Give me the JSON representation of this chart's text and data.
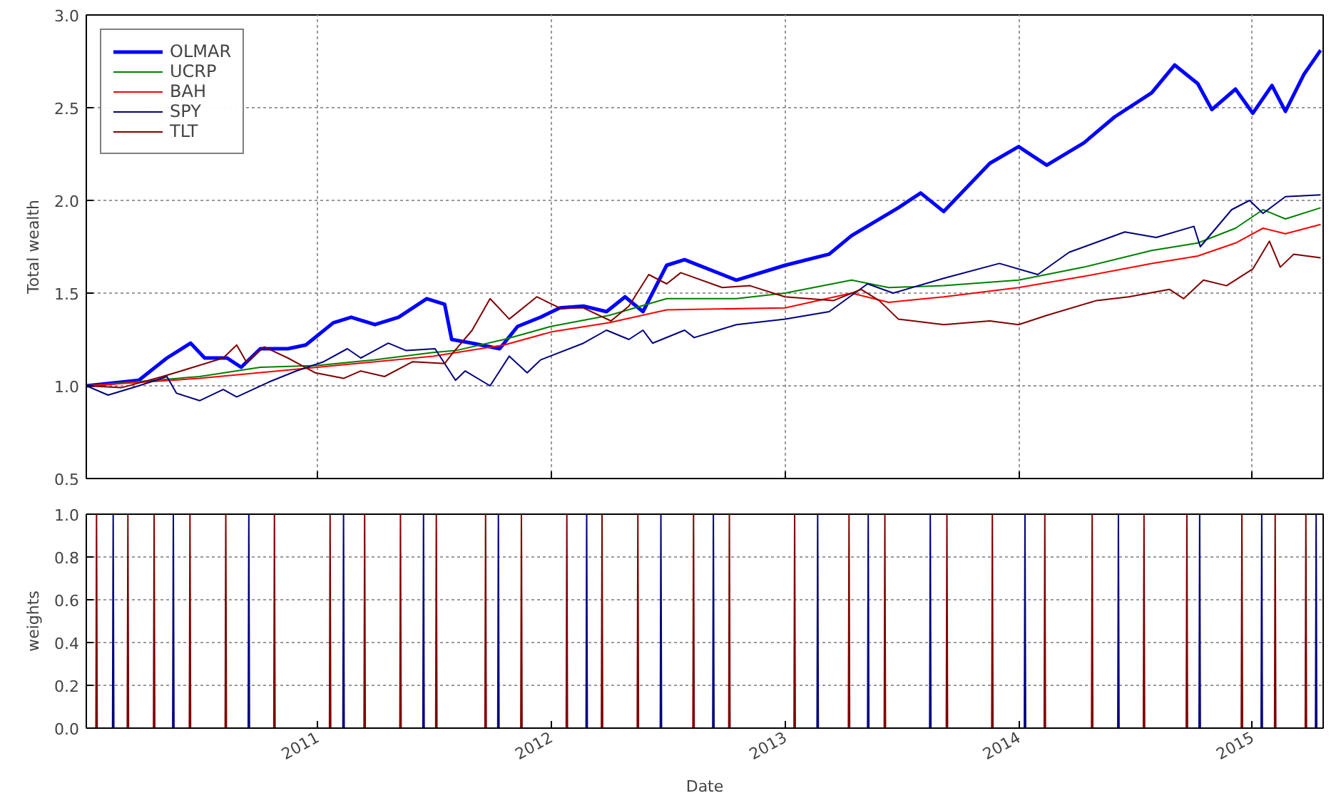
{
  "chart_data": [
    {
      "type": "line",
      "ylabel": "Total wealth",
      "xlim": [
        "2010-01-05",
        "2015-04-22"
      ],
      "ylim": [
        0.5,
        3.0
      ],
      "yticks": [
        0.5,
        {
          "value": 1,
          "label": "1.0"
        },
        1.5,
        {
          "value": 2,
          "label": "2.0"
        },
        2.5,
        {
          "value": 3,
          "label": "3.0"
        }
      ],
      "xticks": [
        {
          "value": "2011-01-01",
          "label": null
        },
        {
          "value": "2012-01-01",
          "label": null
        },
        {
          "value": "2013-01-01",
          "label": null
        },
        {
          "value": "2014-01-01",
          "label": null
        },
        {
          "value": "2015-01-01",
          "label": null
        }
      ],
      "tick_labels": "y",
      "grid": true,
      "legend": "top left",
      "line_style": "solid",
      "marker": "none",
      "series": [
        {
          "name": "OLMAR",
          "color": "#0000ff",
          "x": [
            "2010-01-05",
            "2010-03-28",
            "2010-05-11",
            "2010-06-17",
            "2010-07-09",
            "2010-08-13",
            "2010-09-04",
            "2010-10-04",
            "2010-11-16",
            "2010-12-14",
            "2011-01-26",
            "2011-02-23",
            "2011-04-01",
            "2011-05-08",
            "2011-06-21",
            "2011-07-19",
            "2011-07-30",
            "2011-08-31",
            "2011-10-13",
            "2011-11-10",
            "2011-12-16",
            "2012-01-15",
            "2012-02-21",
            "2012-03-28",
            "2012-04-26",
            "2012-05-24",
            "2012-06-30",
            "2012-07-28",
            "2012-10-17",
            "2013-01-01",
            "2013-03-11",
            "2013-04-15",
            "2013-06-27",
            "2013-08-01",
            "2013-09-06",
            "2013-11-17",
            "2014-01-01",
            "2014-02-14",
            "2014-04-13",
            "2014-05-31",
            "2014-07-28",
            "2014-09-02",
            "2014-10-08",
            "2014-10-30",
            "2014-12-06",
            "2015-01-02",
            "2015-02-01",
            "2015-02-22",
            "2015-03-23",
            "2015-04-18"
          ],
          "values": [
            1.0,
            1.03,
            1.15,
            1.23,
            1.15,
            1.15,
            1.1,
            1.2,
            1.2,
            1.22,
            1.34,
            1.37,
            1.33,
            1.37,
            1.47,
            1.44,
            1.25,
            1.23,
            1.2,
            1.32,
            1.37,
            1.42,
            1.43,
            1.4,
            1.48,
            1.4,
            1.65,
            1.68,
            1.57,
            1.65,
            1.71,
            1.81,
            1.96,
            2.04,
            1.94,
            2.2,
            2.29,
            2.19,
            2.31,
            2.45,
            2.58,
            2.73,
            2.63,
            2.49,
            2.6,
            2.47,
            2.62,
            2.48,
            2.68,
            2.81
          ]
        },
        {
          "name": "UCRP",
          "color": "#008000",
          "x": [
            "2010-01-05",
            "2010-07-01",
            "2010-10-04",
            "2011-01-01",
            "2011-04-01",
            "2011-07-01",
            "2011-08-05",
            "2011-10-20",
            "2012-01-01",
            "2012-04-01",
            "2012-06-30",
            "2012-10-17",
            "2013-01-01",
            "2013-04-15",
            "2013-06-12",
            "2013-09-06",
            "2014-01-01",
            "2014-04-13",
            "2014-07-28",
            "2014-10-08",
            "2014-12-06",
            "2015-01-18",
            "2015-02-22",
            "2015-04-18"
          ],
          "values": [
            1.0,
            1.05,
            1.1,
            1.11,
            1.14,
            1.18,
            1.19,
            1.25,
            1.32,
            1.38,
            1.47,
            1.47,
            1.5,
            1.57,
            1.53,
            1.54,
            1.57,
            1.64,
            1.73,
            1.77,
            1.85,
            1.95,
            1.9,
            1.96
          ]
        },
        {
          "name": "BAH",
          "color": "#ff0000",
          "x": [
            "2010-01-05",
            "2010-07-01",
            "2011-01-01",
            "2011-07-01",
            "2011-10-20",
            "2012-01-01",
            "2012-04-01",
            "2012-06-30",
            "2013-01-01",
            "2013-04-15",
            "2013-06-12",
            "2013-09-06",
            "2014-01-01",
            "2014-04-13",
            "2014-07-28",
            "2014-10-08",
            "2014-12-06",
            "2015-01-18",
            "2015-02-22",
            "2015-04-18"
          ],
          "values": [
            1.0,
            1.04,
            1.1,
            1.16,
            1.22,
            1.29,
            1.34,
            1.41,
            1.42,
            1.5,
            1.45,
            1.48,
            1.53,
            1.59,
            1.66,
            1.7,
            1.77,
            1.85,
            1.82,
            1.87
          ]
        },
        {
          "name": "SPY",
          "color": "#000080",
          "x": [
            "2010-01-05",
            "2010-02-08",
            "2010-03-28",
            "2010-05-11",
            "2010-05-26",
            "2010-07-01",
            "2010-08-07",
            "2010-08-28",
            "2010-10-17",
            "2010-11-29",
            "2011-01-11",
            "2011-02-17",
            "2011-03-10",
            "2011-04-22",
            "2011-05-20",
            "2011-07-04",
            "2011-08-05",
            "2011-08-20",
            "2011-09-28",
            "2011-10-28",
            "2011-11-25",
            "2011-12-16",
            "2012-02-21",
            "2012-03-28",
            "2012-05-02",
            "2012-05-24",
            "2012-06-08",
            "2012-07-28",
            "2012-08-12",
            "2012-10-17",
            "2013-01-01",
            "2013-03-11",
            "2013-05-10",
            "2013-06-19",
            "2013-09-06",
            "2013-12-02",
            "2014-01-31",
            "2014-03-21",
            "2014-06-16",
            "2014-08-04",
            "2014-10-02",
            "2014-10-12",
            "2014-11-30",
            "2014-12-28",
            "2015-01-18",
            "2015-02-22",
            "2015-04-18"
          ],
          "values": [
            1.0,
            0.95,
            1.0,
            1.05,
            0.96,
            0.92,
            0.98,
            0.94,
            1.02,
            1.08,
            1.13,
            1.2,
            1.15,
            1.23,
            1.19,
            1.2,
            1.03,
            1.08,
            1.0,
            1.16,
            1.07,
            1.14,
            1.23,
            1.3,
            1.25,
            1.3,
            1.23,
            1.3,
            1.26,
            1.33,
            1.36,
            1.4,
            1.55,
            1.5,
            1.58,
            1.66,
            1.6,
            1.72,
            1.83,
            1.8,
            1.86,
            1.75,
            1.95,
            2.0,
            1.93,
            2.02,
            2.03
          ]
        },
        {
          "name": "TLT",
          "color": "#800000",
          "x": [
            "2010-01-05",
            "2010-03-01",
            "2010-05-04",
            "2010-06-02",
            "2010-08-07",
            "2010-08-28",
            "2010-09-12",
            "2010-10-10",
            "2010-11-16",
            "2010-12-29",
            "2011-02-11",
            "2011-03-10",
            "2011-04-16",
            "2011-05-30",
            "2011-07-19",
            "2011-07-30",
            "2011-08-31",
            "2011-09-28",
            "2011-10-28",
            "2011-12-10",
            "2012-01-15",
            "2012-02-21",
            "2012-04-04",
            "2012-05-02",
            "2012-06-02",
            "2012-06-30",
            "2012-07-22",
            "2012-09-25",
            "2012-11-07",
            "2013-01-01",
            "2013-03-18",
            "2013-04-30",
            "2013-05-28",
            "2013-06-27",
            "2013-09-06",
            "2013-11-17",
            "2014-01-01",
            "2014-02-14",
            "2014-05-03",
            "2014-06-22",
            "2014-08-25",
            "2014-09-16",
            "2014-10-17",
            "2014-11-22",
            "2015-01-02",
            "2015-01-28",
            "2015-02-14",
            "2015-03-07",
            "2015-04-18"
          ],
          "values": [
            1.0,
            0.99,
            1.05,
            1.08,
            1.15,
            1.22,
            1.13,
            1.21,
            1.15,
            1.07,
            1.04,
            1.08,
            1.05,
            1.13,
            1.12,
            1.17,
            1.3,
            1.47,
            1.36,
            1.48,
            1.42,
            1.42,
            1.35,
            1.43,
            1.6,
            1.55,
            1.61,
            1.53,
            1.54,
            1.48,
            1.46,
            1.52,
            1.46,
            1.36,
            1.33,
            1.35,
            1.33,
            1.38,
            1.46,
            1.48,
            1.52,
            1.47,
            1.57,
            1.54,
            1.63,
            1.78,
            1.64,
            1.71,
            1.69
          ]
        }
      ]
    },
    {
      "type": "line",
      "ylabel": "weights",
      "xlabel": "Date",
      "xlim": [
        "2010-01-05",
        "2015-04-22"
      ],
      "ylim": [
        0.0,
        1.0
      ],
      "yticks": [
        {
          "value": 0,
          "label": "0.0"
        },
        0.2,
        0.4,
        0.6,
        0.8,
        {
          "value": 1,
          "label": "1.0"
        }
      ],
      "xticks": [
        {
          "value": "2011-01-01",
          "label": "2011"
        },
        {
          "value": "2012-01-01",
          "label": "2012"
        },
        {
          "value": "2013-01-01",
          "label": "2013"
        },
        {
          "value": "2014-01-01",
          "label": "2014"
        },
        {
          "value": "2015-01-01",
          "label": "2015"
        }
      ],
      "grid": "y",
      "legend": false,
      "line_style": "solid",
      "marker": "none",
      "series": [
        {
          "color": "#000080",
          "x": [
            "2010-02-15",
            "2010-02-16",
            "2010-02-17",
            "2010-05-20",
            "2010-05-21",
            "2010-05-22",
            "2010-09-15",
            "2010-09-16",
            "2010-09-17",
            "2011-02-10",
            "2011-02-11",
            "2011-02-12",
            "2011-06-15",
            "2011-06-16",
            "2011-06-17",
            "2011-10-10",
            "2011-10-11",
            "2011-10-12",
            "2012-02-25",
            "2012-02-26",
            "2012-02-27",
            "2012-06-20",
            "2012-06-21",
            "2012-06-22",
            "2012-09-10",
            "2012-09-11",
            "2012-09-12",
            "2013-02-20",
            "2013-02-21",
            "2013-02-22",
            "2013-05-10",
            "2013-05-11",
            "2013-05-12",
            "2013-08-15",
            "2013-08-16",
            "2013-08-17",
            "2014-01-10",
            "2014-01-11",
            "2014-01-12",
            "2014-06-05",
            "2014-06-06",
            "2014-06-07",
            "2014-10-10",
            "2014-10-11",
            "2014-10-12",
            "2015-01-15",
            "2015-01-16",
            "2015-01-17",
            "2015-04-10",
            "2015-04-11",
            "2015-04-12"
          ],
          "values": [
            0,
            1,
            0,
            0,
            1,
            0,
            0,
            1,
            0,
            0,
            1,
            0,
            0,
            1,
            0,
            0,
            1,
            0,
            0,
            1,
            0,
            0,
            1,
            0,
            0,
            1,
            0,
            0,
            1,
            0,
            0,
            1,
            0,
            0,
            1,
            0,
            0,
            1,
            0,
            0,
            1,
            0,
            0,
            1,
            0,
            0,
            1,
            0,
            0,
            1,
            0
          ]
        },
        {
          "color": "#800000",
          "x": [
            "2010-01-20",
            "2010-01-21",
            "2010-01-22",
            "2010-03-10",
            "2010-03-11",
            "2010-03-12",
            "2010-04-20",
            "2010-04-21",
            "2010-04-22",
            "2010-06-15",
            "2010-06-16",
            "2010-06-17",
            "2010-08-10",
            "2010-08-11",
            "2010-08-12",
            "2010-10-25",
            "2010-10-26",
            "2010-10-27",
            "2011-01-20",
            "2011-01-21",
            "2011-01-22",
            "2011-03-15",
            "2011-03-16",
            "2011-03-17",
            "2011-05-10",
            "2011-05-11",
            "2011-05-12",
            "2011-07-05",
            "2011-07-06",
            "2011-07-07",
            "2011-09-20",
            "2011-09-21",
            "2011-09-22",
            "2011-11-15",
            "2011-11-16",
            "2011-11-17",
            "2012-01-25",
            "2012-01-26",
            "2012-01-27",
            "2012-03-20",
            "2012-03-21",
            "2012-03-22",
            "2012-05-15",
            "2012-05-16",
            "2012-05-17",
            "2012-08-10",
            "2012-08-11",
            "2012-08-12",
            "2012-10-05",
            "2012-10-06",
            "2012-10-07",
            "2013-01-15",
            "2013-01-16",
            "2013-01-17",
            "2013-04-10",
            "2013-04-11",
            "2013-04-12",
            "2013-06-05",
            "2013-06-06",
            "2013-06-07",
            "2013-09-10",
            "2013-09-11",
            "2013-09-12",
            "2013-11-20",
            "2013-11-21",
            "2013-11-22",
            "2014-02-10",
            "2014-02-11",
            "2014-02-12",
            "2014-04-25",
            "2014-04-26",
            "2014-04-27",
            "2014-07-15",
            "2014-07-16",
            "2014-07-17",
            "2014-09-20",
            "2014-09-21",
            "2014-09-22",
            "2014-12-15",
            "2014-12-16",
            "2014-12-17",
            "2015-02-05",
            "2015-02-06",
            "2015-02-07",
            "2015-03-25",
            "2015-03-26",
            "2015-03-27"
          ],
          "values": [
            0,
            1,
            0,
            0,
            1,
            0,
            0,
            1,
            0,
            0,
            1,
            0,
            0,
            1,
            0,
            0,
            1,
            0,
            0,
            1,
            0,
            0,
            1,
            0,
            0,
            1,
            0,
            0,
            1,
            0,
            0,
            1,
            0,
            0,
            1,
            0,
            0,
            1,
            0,
            0,
            1,
            0,
            0,
            1,
            0,
            0,
            1,
            0,
            0,
            1,
            0,
            0,
            1,
            0,
            0,
            1,
            0,
            0,
            1,
            0,
            0,
            1,
            0,
            0,
            1,
            0,
            0,
            1,
            0,
            0,
            1,
            0,
            0,
            1,
            0,
            0,
            1,
            0,
            0,
            1,
            0,
            0,
            1,
            0,
            0,
            1,
            0
          ]
        }
      ]
    }
  ]
}
